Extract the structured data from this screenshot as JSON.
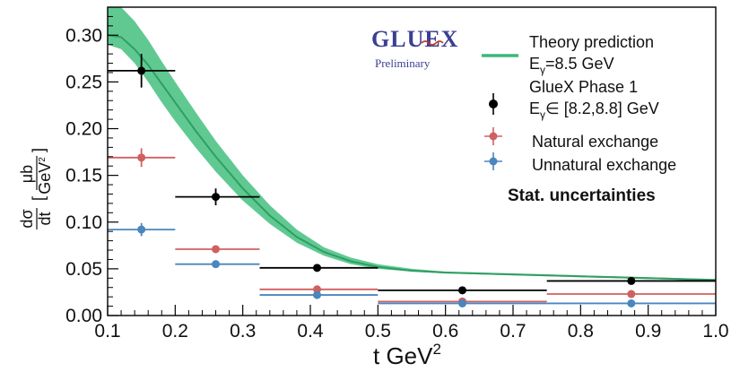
{
  "chart_data": {
    "type": "scatter",
    "xlabel": "t GeV",
    "xlabel_sup": "2",
    "ylabel_num": "dσ",
    "ylabel_den": "dt",
    "ylabel_unit_num": "μb",
    "ylabel_unit_den": "GeV",
    "ylabel_unit_den_sup": "2",
    "xlim": [
      0.1,
      1.0
    ],
    "ylim": [
      0.0,
      0.33
    ],
    "xticks": [
      "0.1",
      "0.2",
      "0.3",
      "0.4",
      "0.5",
      "0.6",
      "0.7",
      "0.8",
      "0.9",
      "1.0"
    ],
    "yticks": [
      "0.00",
      "0.05",
      "0.10",
      "0.15",
      "0.20",
      "0.25",
      "0.30"
    ],
    "grid": false,
    "legend_placement": "top-right",
    "annotation": "Stat. uncertainties",
    "logo": {
      "text": "GLUEX",
      "subtitle": "Preliminary"
    },
    "theory": {
      "color": "#3cb878",
      "band_color": "#44c07f",
      "legend_line1": "Theory prediction",
      "legend_line2_prefix": "E",
      "legend_line2_sub": "γ",
      "legend_line2_suffix": "=8.5 GeV",
      "x": [
        0.1,
        0.12,
        0.14,
        0.16,
        0.18,
        0.2,
        0.23,
        0.26,
        0.3,
        0.34,
        0.38,
        0.42,
        0.46,
        0.5,
        0.55,
        0.6,
        0.65,
        0.7,
        0.8,
        0.9,
        1.0
      ],
      "y": [
        0.3,
        0.298,
        0.285,
        0.268,
        0.248,
        0.228,
        0.198,
        0.17,
        0.136,
        0.107,
        0.084,
        0.068,
        0.058,
        0.052,
        0.048,
        0.046,
        0.045,
        0.044,
        0.042,
        0.04,
        0.038
      ],
      "low": [
        0.29,
        0.285,
        0.27,
        0.25,
        0.228,
        0.208,
        0.18,
        0.154,
        0.123,
        0.098,
        0.078,
        0.064,
        0.055,
        0.05,
        0.047,
        0.045,
        0.044,
        0.043,
        0.041,
        0.039,
        0.037
      ],
      "high": [
        0.335,
        0.33,
        0.315,
        0.295,
        0.272,
        0.25,
        0.218,
        0.187,
        0.15,
        0.118,
        0.092,
        0.073,
        0.062,
        0.055,
        0.05,
        0.047,
        0.046,
        0.045,
        0.043,
        0.041,
        0.039
      ]
    },
    "series": [
      {
        "name": "GlueX Phase 1",
        "legend_line2_prefix": "E",
        "legend_line2_sub": "γ",
        "legend_line2_suffix": "∈ [8.2,8.8] GeV",
        "color": "#000000",
        "points": [
          {
            "x": 0.15,
            "y": 0.262,
            "xlo": 0.1,
            "xhi": 0.2,
            "yerr": 0.018
          },
          {
            "x": 0.26,
            "y": 0.127,
            "xlo": 0.2,
            "xhi": 0.325,
            "yerr": 0.009
          },
          {
            "x": 0.41,
            "y": 0.051,
            "xlo": 0.325,
            "xhi": 0.5,
            "yerr": 0.004
          },
          {
            "x": 0.625,
            "y": 0.027,
            "xlo": 0.5,
            "xhi": 0.75,
            "yerr": 0.003
          },
          {
            "x": 0.875,
            "y": 0.037,
            "xlo": 0.75,
            "xhi": 1.0,
            "yerr": 0.003
          }
        ]
      },
      {
        "name": "Natural exchange",
        "color": "#d06060",
        "points": [
          {
            "x": 0.15,
            "y": 0.169,
            "xlo": 0.1,
            "xhi": 0.2,
            "yerr": 0.01
          },
          {
            "x": 0.26,
            "y": 0.071,
            "xlo": 0.2,
            "xhi": 0.325,
            "yerr": 0.004
          },
          {
            "x": 0.41,
            "y": 0.028,
            "xlo": 0.325,
            "xhi": 0.5,
            "yerr": 0.002
          },
          {
            "x": 0.625,
            "y": 0.015,
            "xlo": 0.5,
            "xhi": 0.75,
            "yerr": 0.001
          },
          {
            "x": 0.875,
            "y": 0.023,
            "xlo": 0.75,
            "xhi": 1.0,
            "yerr": 0.002
          }
        ]
      },
      {
        "name": "Unnatural exchange",
        "color": "#4a86bf",
        "points": [
          {
            "x": 0.15,
            "y": 0.092,
            "xlo": 0.1,
            "xhi": 0.2,
            "yerr": 0.007
          },
          {
            "x": 0.26,
            "y": 0.055,
            "xlo": 0.2,
            "xhi": 0.325,
            "yerr": 0.003
          },
          {
            "x": 0.41,
            "y": 0.022,
            "xlo": 0.325,
            "xhi": 0.5,
            "yerr": 0.002
          },
          {
            "x": 0.625,
            "y": 0.013,
            "xlo": 0.5,
            "xhi": 0.75,
            "yerr": 0.001
          },
          {
            "x": 0.875,
            "y": 0.013,
            "xlo": 0.75,
            "xhi": 1.0,
            "yerr": 0.001
          }
        ]
      }
    ]
  }
}
